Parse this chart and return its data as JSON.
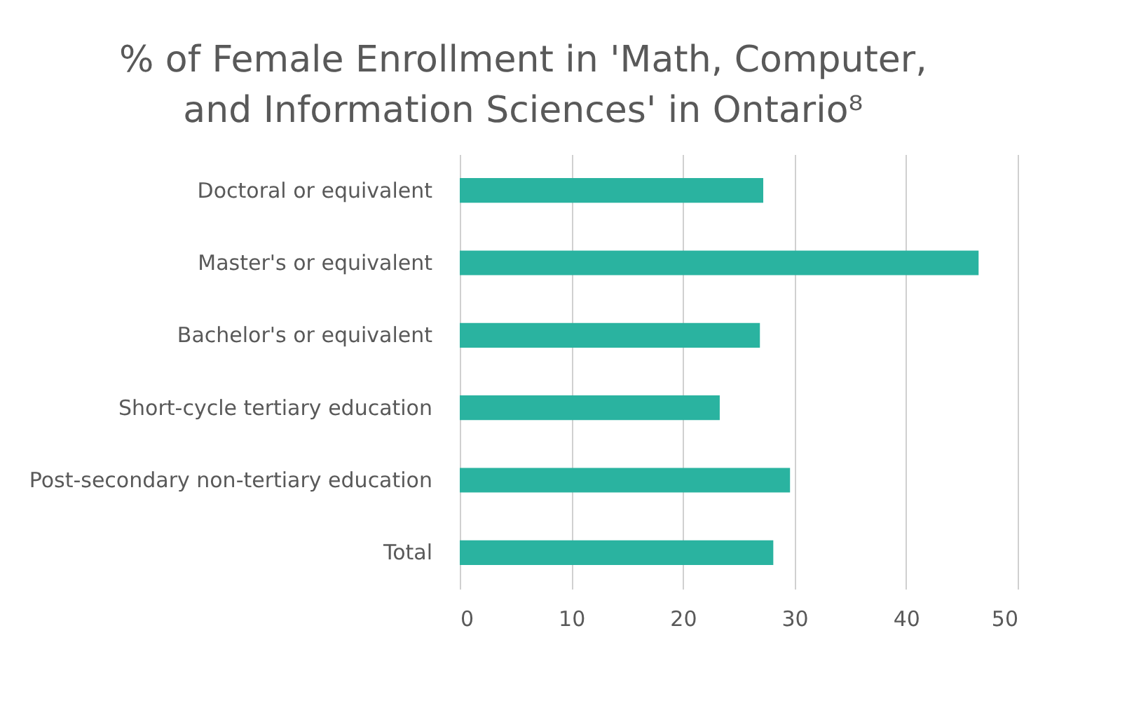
{
  "chart_data": {
    "type": "bar",
    "orientation": "horizontal",
    "title": "% of Female Enrollment in 'Math, Computer, and Information Sciences' in Ontario⁸",
    "categories": [
      "Doctoral or equivalent",
      "Master's or equivalent",
      "Bachelor's or equivalent",
      "Short-cycle tertiary education",
      "Post-secondary non-tertiary education",
      "Total"
    ],
    "values": [
      27.2,
      46.5,
      26.9,
      23.3,
      29.6,
      28.1
    ],
    "color": "#2ab3a0",
    "xlim": [
      0,
      50
    ],
    "xticks": [
      0,
      10,
      20,
      30,
      40,
      50
    ],
    "grid": "x"
  }
}
